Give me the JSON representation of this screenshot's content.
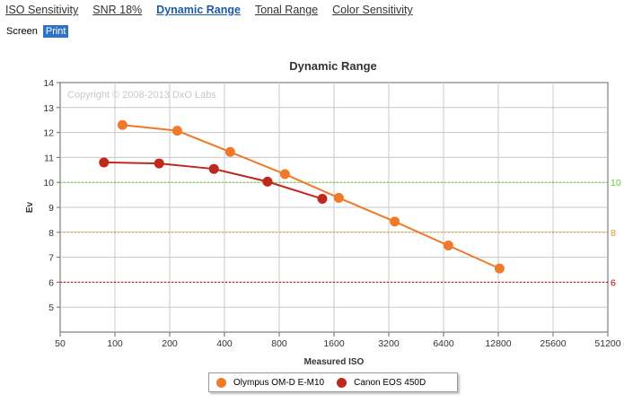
{
  "tabs": [
    {
      "label": "ISO Sensitivity",
      "active": false
    },
    {
      "label": "SNR 18%",
      "active": false
    },
    {
      "label": "Dynamic Range",
      "active": true
    },
    {
      "label": "Tonal Range",
      "active": false
    },
    {
      "label": "Color Sensitivity",
      "active": false
    }
  ],
  "view_buttons": [
    {
      "label": "Screen",
      "active": false
    },
    {
      "label": "Print",
      "active": true
    }
  ],
  "chart_data": {
    "type": "line",
    "title": "Dynamic Range",
    "xlabel": "Measured ISO",
    "ylabel": "Ev",
    "x_scale": "log2",
    "x_ticks": [
      50,
      100,
      200,
      400,
      800,
      1600,
      3200,
      6400,
      12800,
      25600,
      51200
    ],
    "xlim": [
      50,
      51200
    ],
    "ylim": [
      4,
      14
    ],
    "y_ticks": [
      5,
      6,
      7,
      8,
      9,
      10,
      11,
      12,
      13,
      14
    ],
    "grid": true,
    "watermark": "Copyright © 2008-2013 DxO Labs",
    "reference_lines": [
      {
        "value": 10,
        "label": "10",
        "color": "#66cc33"
      },
      {
        "value": 8,
        "label": "8",
        "color": "#d4a017"
      },
      {
        "value": 6,
        "label": "6",
        "color": "#c00000"
      }
    ],
    "legend_position": "bottom",
    "series": [
      {
        "name": "Olympus OM-D E-M10",
        "color": "#f07a2a",
        "x": [
          110,
          220,
          430,
          860,
          1700,
          3450,
          6800,
          13000
        ],
        "y": [
          12.3,
          12.07,
          11.22,
          10.33,
          9.38,
          8.43,
          7.47,
          6.55
        ]
      },
      {
        "name": "Canon EOS 450D",
        "color": "#c0281e",
        "x": [
          87,
          175,
          350,
          690,
          1380
        ],
        "y": [
          10.8,
          10.76,
          10.54,
          10.03,
          9.34
        ]
      }
    ]
  }
}
